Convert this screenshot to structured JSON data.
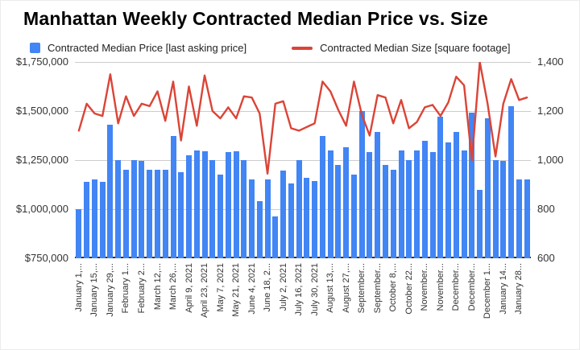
{
  "chart_data": {
    "type": "combo",
    "title": "Manhattan Weekly Contracted Median Price vs. Size",
    "grid": true,
    "legend_position": "top",
    "left_axis": {
      "min": 750000,
      "max": 1750000,
      "tick_labels": [
        "$1,750,000",
        "$1,500,000",
        "$1,250,000",
        "$1,000,000",
        "$750,000"
      ]
    },
    "right_axis": {
      "min": 600,
      "max": 1400,
      "tick_labels": [
        "1,400",
        "1,200",
        "1,000",
        "800",
        "600"
      ]
    },
    "x_axis": {
      "tick_every_n_bars": 2,
      "tick_labels": [
        "January 1,...",
        "January 15,...",
        "January 29,...",
        "February 1...",
        "February 2...",
        "March 12,...",
        "March 26,...",
        "April 9, 2021",
        "April 23, 2021",
        "May 7, 2021",
        "May 21, 2021",
        "June 4, 2021",
        "June 18, 2...",
        "July 2, 2021",
        "July 16, 2021",
        "July 30, 2021",
        "August 13,...",
        "August 27,...",
        "September...",
        "September...",
        "October 8,...",
        "October 22...",
        "November...",
        "November...",
        "December...",
        "December...",
        "December 1...",
        "January 14...",
        "January 28..."
      ]
    },
    "series": [
      {
        "name": "Contracted Median Price [last asking price]",
        "type": "bar",
        "axis": "left",
        "color": "#4285f4",
        "values": [
          1000000,
          1140000,
          1150000,
          1140000,
          1430000,
          1250000,
          1200000,
          1250000,
          1245000,
          1200000,
          1200000,
          1200000,
          1375000,
          1190000,
          1275000,
          1300000,
          1295000,
          1250000,
          1175000,
          1290000,
          1295000,
          1250000,
          1150000,
          1040000,
          1150000,
          965000,
          1195000,
          1130000,
          1250000,
          1160000,
          1145000,
          1375000,
          1300000,
          1225000,
          1315000,
          1175000,
          1500000,
          1290000,
          1395000,
          1225000,
          1200000,
          1300000,
          1250000,
          1300000,
          1350000,
          1290000,
          1470000,
          1340000,
          1395000,
          1300000,
          1490000,
          1100000,
          1462000,
          1250000,
          1245000,
          1525000,
          1150000,
          1150000
        ]
      },
      {
        "name": "Contracted Median Size [square footage]",
        "type": "line",
        "axis": "right",
        "color": "#db4437",
        "values": [
          1120,
          1230,
          1190,
          1180,
          1350,
          1150,
          1260,
          1180,
          1230,
          1220,
          1280,
          1160,
          1320,
          1080,
          1300,
          1140,
          1345,
          1200,
          1170,
          1215,
          1170,
          1260,
          1255,
          1190,
          945,
          1230,
          1240,
          1130,
          1120,
          1135,
          1150,
          1320,
          1280,
          1205,
          1140,
          1320,
          1185,
          1100,
          1265,
          1255,
          1150,
          1245,
          1130,
          1155,
          1215,
          1225,
          1180,
          1235,
          1340,
          1305,
          1000,
          1400,
          1230,
          1015,
          1230,
          1330,
          1245,
          1255
        ]
      }
    ]
  }
}
